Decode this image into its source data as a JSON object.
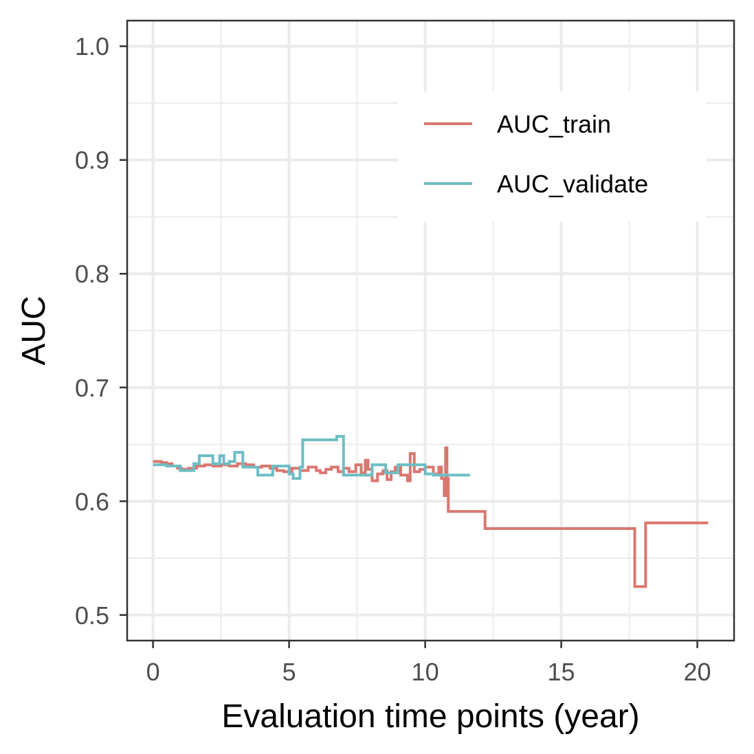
{
  "chart_data": {
    "type": "line",
    "step": true,
    "xlabel": "Evaluation time points (year)",
    "ylabel": "AUC",
    "xlim": [
      -0.95,
      21.35
    ],
    "ylim": [
      0.4775,
      1.0225
    ],
    "x_ticks": [
      0,
      5,
      10,
      15,
      20
    ],
    "x_tick_labels": [
      "0",
      "5",
      "10",
      "15",
      "20"
    ],
    "y_ticks": [
      0.5,
      0.6,
      0.7,
      0.8,
      0.9,
      1.0
    ],
    "y_tick_labels": [
      "0.5",
      "0.6",
      "0.7",
      "0.8",
      "0.9",
      "1.0"
    ],
    "grid": true,
    "legend_position": "top-right",
    "series": [
      {
        "name": "AUC_train",
        "color": "#d97870",
        "x": [
          0,
          0.3,
          0.5,
          0.7,
          0.9,
          1.05,
          1.3,
          1.6,
          1.9,
          2.2,
          2.5,
          2.8,
          3.1,
          3.4,
          3.7,
          4.0,
          4.3,
          4.55,
          4.8,
          5.1,
          5.4,
          5.7,
          6.0,
          6.15,
          6.35,
          6.55,
          6.8,
          7.0,
          7.2,
          7.45,
          7.65,
          7.8,
          7.9,
          8.05,
          8.25,
          8.45,
          8.6,
          8.75,
          8.9,
          9.1,
          9.35,
          9.45,
          9.6,
          9.8,
          10.0,
          10.3,
          10.5,
          10.6,
          10.7,
          10.75,
          10.8,
          10.85,
          12.2,
          17.7,
          18.1,
          20.4
        ],
        "y": [
          0.635,
          0.634,
          0.633,
          0.631,
          0.629,
          0.628,
          0.629,
          0.631,
          0.632,
          0.631,
          0.632,
          0.631,
          0.633,
          0.632,
          0.63,
          0.631,
          0.629,
          0.627,
          0.626,
          0.629,
          0.627,
          0.63,
          0.627,
          0.625,
          0.628,
          0.63,
          0.626,
          0.629,
          0.626,
          0.632,
          0.625,
          0.636,
          0.628,
          0.618,
          0.624,
          0.627,
          0.619,
          0.626,
          0.63,
          0.623,
          0.618,
          0.642,
          0.626,
          0.628,
          0.63,
          0.624,
          0.63,
          0.62,
          0.605,
          0.647,
          0.62,
          0.591,
          0.576,
          0.525,
          0.581,
          0.581
        ]
      },
      {
        "name": "AUC_validate",
        "color": "#6cbec4",
        "x": [
          0,
          0.5,
          1.0,
          1.5,
          1.7,
          2.2,
          2.45,
          2.6,
          2.8,
          3.0,
          3.3,
          3.85,
          4.4,
          5.0,
          5.15,
          5.4,
          5.5,
          5.8,
          6.35,
          6.75,
          7.0,
          7.3,
          7.9,
          8.05,
          8.55,
          9.0,
          9.5,
          10.0,
          10.3,
          11.65
        ],
        "y": [
          0.632,
          0.631,
          0.627,
          0.633,
          0.64,
          0.633,
          0.64,
          0.633,
          0.635,
          0.643,
          0.63,
          0.623,
          0.631,
          0.624,
          0.62,
          0.63,
          0.654,
          0.654,
          0.654,
          0.657,
          0.623,
          0.623,
          0.623,
          0.632,
          0.625,
          0.632,
          0.632,
          0.624,
          0.623,
          0.623
        ]
      }
    ]
  }
}
